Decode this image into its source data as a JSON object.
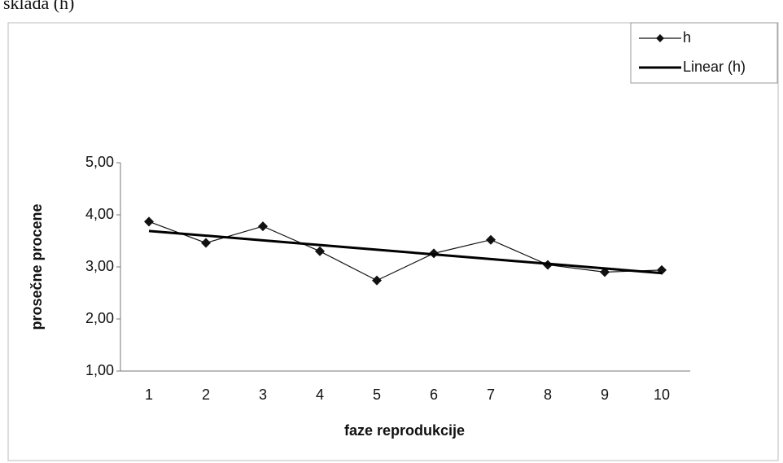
{
  "chart_data": {
    "type": "line",
    "title": "sklada (h)",
    "x_label": "faze reprodukcije",
    "y_label": "prosečne procene",
    "categories": [
      "1",
      "2",
      "3",
      "4",
      "5",
      "6",
      "7",
      "8",
      "9",
      "10"
    ],
    "series": [
      {
        "name": "h",
        "color": "#111111",
        "marker": "diamond",
        "values": [
          3.87,
          3.46,
          3.78,
          3.3,
          2.74,
          3.26,
          3.52,
          3.04,
          2.9,
          2.94
        ]
      },
      {
        "name": "Linear (h)",
        "color": "#000000",
        "marker": "none",
        "values": [
          3.69,
          3.6,
          3.51,
          3.42,
          3.33,
          3.24,
          3.15,
          3.06,
          2.97,
          2.88
        ]
      }
    ],
    "ylim": [
      1,
      5
    ],
    "yticks": [
      {
        "value": 1,
        "label": "1,00"
      },
      {
        "value": 2,
        "label": "2,00"
      },
      {
        "value": 3,
        "label": "3,00"
      },
      {
        "value": 4,
        "label": "4,00"
      },
      {
        "value": 5,
        "label": "5,00"
      }
    ],
    "grid": false,
    "legend": "top-right"
  }
}
